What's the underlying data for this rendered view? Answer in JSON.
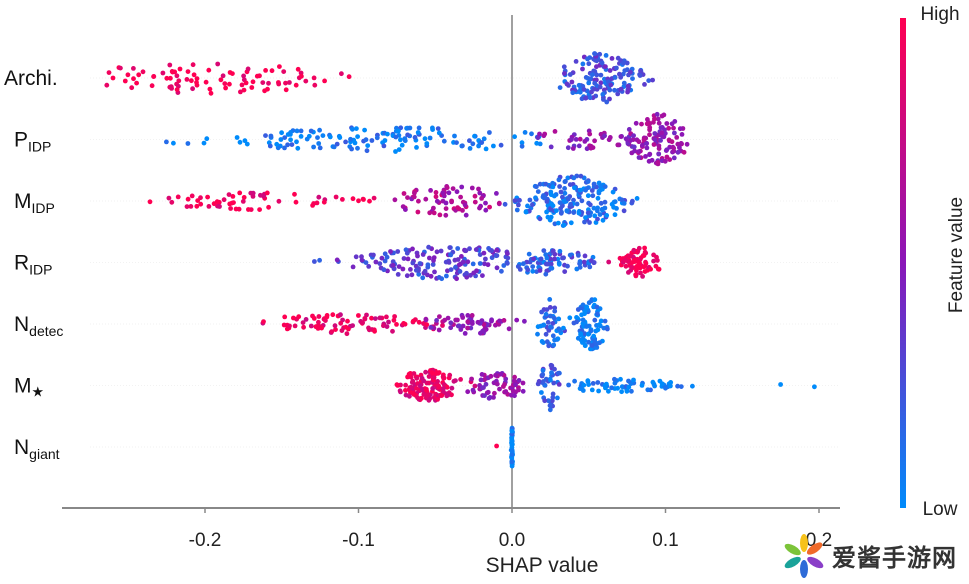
{
  "chart_data": {
    "type": "scatter",
    "subtype": "shap-beeswarm",
    "title": "",
    "xlabel": "SHAP value",
    "ylabel": "",
    "xlim": [
      -0.29,
      0.21
    ],
    "x_ticks": [
      -0.2,
      -0.1,
      0.0,
      0.1,
      0.2
    ],
    "x_tick_labels": [
      "-0.2",
      "-0.1",
      "0.0",
      "0.1",
      "0.2"
    ],
    "grid": false,
    "zero_line": true,
    "features": [
      {
        "name": "Archi.",
        "sub": "",
        "star": false,
        "clusters": [
          {
            "center": -0.2,
            "spread": 0.065,
            "min": -0.268,
            "max": -0.105,
            "count": 90,
            "color": 1.0,
            "width": 0.6
          },
          {
            "center": 0.057,
            "spread": 0.018,
            "min": 0.03,
            "max": 0.1,
            "count": 150,
            "color": 0.25,
            "width": 1.0
          }
        ]
      },
      {
        "name": "P",
        "sub": "IDP",
        "star": false,
        "clusters": [
          {
            "center": -0.08,
            "spread": 0.08,
            "min": -0.23,
            "max": 0.02,
            "count": 140,
            "color": 0.05,
            "width": 0.45
          },
          {
            "center": 0.05,
            "spread": 0.03,
            "min": 0.015,
            "max": 0.08,
            "count": 40,
            "color": 0.5,
            "width": 0.4
          },
          {
            "center": 0.095,
            "spread": 0.015,
            "min": 0.07,
            "max": 0.13,
            "count": 110,
            "color": 0.55,
            "width": 1.0
          }
        ]
      },
      {
        "name": "M",
        "sub": "IDP",
        "star": false,
        "clusters": [
          {
            "center": -0.17,
            "spread": 0.05,
            "min": -0.25,
            "max": -0.08,
            "count": 60,
            "color": 0.95,
            "width": 0.3
          },
          {
            "center": -0.04,
            "spread": 0.025,
            "min": -0.08,
            "max": -0.005,
            "count": 70,
            "color": 0.65,
            "width": 0.6
          },
          {
            "center": 0.04,
            "spread": 0.025,
            "min": -0.005,
            "max": 0.085,
            "count": 190,
            "color": 0.12,
            "width": 1.0
          }
        ]
      },
      {
        "name": "R",
        "sub": "IDP",
        "star": false,
        "clusters": [
          {
            "center": -0.04,
            "spread": 0.04,
            "min": -0.13,
            "max": 0.0,
            "count": 150,
            "color": 0.3,
            "width": 0.65
          },
          {
            "center": 0.025,
            "spread": 0.025,
            "min": 0.0,
            "max": 0.055,
            "count": 80,
            "color": 0.2,
            "width": 0.45
          },
          {
            "center": 0.085,
            "spread": 0.01,
            "min": 0.055,
            "max": 0.097,
            "count": 70,
            "color": 0.97,
            "width": 0.55
          }
        ]
      },
      {
        "name": "N",
        "sub": "detec",
        "star": false,
        "clusters": [
          {
            "center": -0.11,
            "spread": 0.045,
            "min": -0.17,
            "max": -0.04,
            "count": 90,
            "color": 0.92,
            "width": 0.35
          },
          {
            "center": -0.03,
            "spread": 0.02,
            "min": -0.06,
            "max": 0.01,
            "count": 60,
            "color": 0.55,
            "width": 0.4
          },
          {
            "center": 0.025,
            "spread": 0.006,
            "min": 0.01,
            "max": 0.035,
            "count": 45,
            "color": 0.15,
            "width": 1.0
          },
          {
            "center": 0.052,
            "spread": 0.008,
            "min": 0.035,
            "max": 0.064,
            "count": 90,
            "color": 0.02,
            "width": 1.0
          }
        ]
      },
      {
        "name": "M",
        "sub": "",
        "star": true,
        "clusters": [
          {
            "center": -0.055,
            "spread": 0.015,
            "min": -0.075,
            "max": -0.02,
            "count": 130,
            "color": 0.92,
            "width": 0.6
          },
          {
            "center": -0.01,
            "spread": 0.015,
            "min": -0.03,
            "max": 0.015,
            "count": 60,
            "color": 0.55,
            "width": 0.5
          },
          {
            "center": 0.025,
            "spread": 0.005,
            "min": 0.015,
            "max": 0.035,
            "count": 40,
            "color": 0.2,
            "width": 1.0
          },
          {
            "center": 0.07,
            "spread": 0.03,
            "min": 0.035,
            "max": 0.13,
            "count": 60,
            "color": 0.02,
            "width": 0.2
          },
          {
            "center": 0.185,
            "spread": 0.01,
            "min": 0.175,
            "max": 0.197,
            "count": 2,
            "color": 0.0,
            "width": 0.0
          }
        ]
      },
      {
        "name": "N",
        "sub": "giant",
        "star": false,
        "clusters": [
          {
            "center": -0.01,
            "spread": 0.0,
            "min": -0.011,
            "max": -0.009,
            "count": 1,
            "color": 1.0,
            "width": 0.0
          },
          {
            "center": 0.0,
            "spread": 0.0003,
            "min": -0.0008,
            "max": 0.0008,
            "count": 40,
            "color": 0.0,
            "width": 1.0
          }
        ]
      }
    ],
    "colorbar": {
      "label": "Feature value",
      "high_label": "High",
      "low_label": "Low",
      "high_color": "#ff0052",
      "mid_color": "#8a16b8",
      "low_color": "#008bfb"
    }
  },
  "watermark": {
    "text": "爱酱手游网"
  }
}
